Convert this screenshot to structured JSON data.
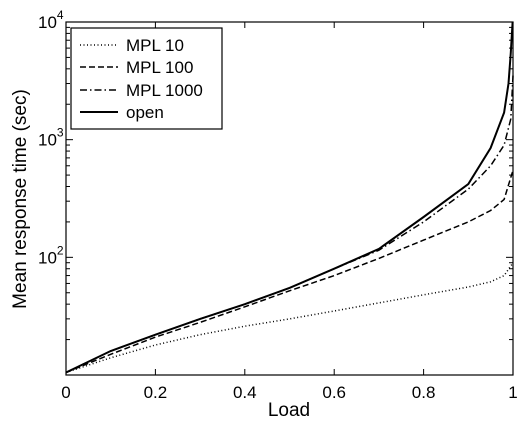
{
  "chart_data": {
    "type": "line",
    "xlabel": "Load",
    "ylabel": "Mean response time (sec)",
    "x_scale": "linear",
    "y_scale": "log",
    "xlim": [
      0,
      1
    ],
    "ylim": [
      10,
      10000
    ],
    "x_ticks": [
      "0",
      "0.2",
      "0.4",
      "0.6",
      "0.8",
      "1"
    ],
    "y_ticks": [
      {
        "base": "10",
        "exp": "2",
        "value": 100
      },
      {
        "base": "10",
        "exp": "3",
        "value": 1000
      },
      {
        "base": "10",
        "exp": "4",
        "value": 10000
      }
    ],
    "grid": false,
    "legend_position": "top-left",
    "series": [
      {
        "name": "MPL 10",
        "style": "dotted",
        "x": [
          0,
          0.1,
          0.2,
          0.3,
          0.4,
          0.5,
          0.6,
          0.7,
          0.8,
          0.9,
          0.95,
          0.98,
          1.0
        ],
        "y": [
          10.5,
          14,
          18,
          22,
          26,
          30,
          35,
          41,
          48,
          56,
          62,
          70,
          90
        ]
      },
      {
        "name": "MPL 100",
        "style": "dashed",
        "x": [
          0,
          0.1,
          0.2,
          0.3,
          0.4,
          0.5,
          0.6,
          0.7,
          0.8,
          0.9,
          0.95,
          0.98,
          1.0
        ],
        "y": [
          10.5,
          15,
          21,
          28,
          38,
          52,
          70,
          98,
          140,
          200,
          250,
          310,
          550
        ]
      },
      {
        "name": "MPL 1000",
        "style": "dashdot",
        "x": [
          0,
          0.1,
          0.2,
          0.3,
          0.4,
          0.5,
          0.6,
          0.7,
          0.8,
          0.9,
          0.95,
          0.98,
          0.995,
          1.0
        ],
        "y": [
          10.5,
          16,
          22,
          30,
          40,
          55,
          80,
          115,
          200,
          380,
          600,
          900,
          1500,
          3500
        ]
      },
      {
        "name": "open",
        "style": "solid",
        "x": [
          0,
          0.1,
          0.2,
          0.3,
          0.4,
          0.5,
          0.6,
          0.7,
          0.8,
          0.9,
          0.95,
          0.98,
          0.99,
          0.995,
          0.999
        ],
        "y": [
          10.5,
          16,
          22,
          30,
          40,
          55,
          80,
          118,
          220,
          420,
          850,
          1700,
          3000,
          5500,
          10000
        ]
      }
    ]
  }
}
